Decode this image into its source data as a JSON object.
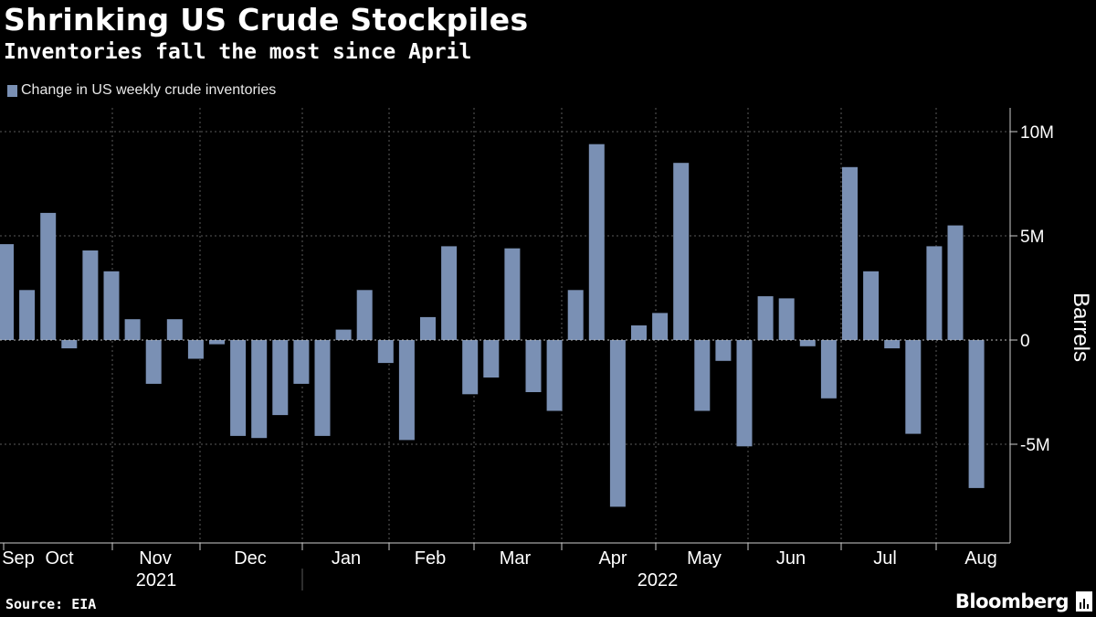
{
  "title": "Shrinking US Crude Stockpiles",
  "subtitle": "Inventories fall the most since April",
  "source": "Source: EIA",
  "brand": "Bloomberg",
  "colors": {
    "background": "#000000",
    "bar": "#7a90b4",
    "grid": "#5a5a5a",
    "text": "#ffffff",
    "axis": "#cccccc"
  },
  "chart_data": {
    "type": "bar",
    "title": "Shrinking US Crude Stockpiles",
    "subtitle": "Inventories fall the most since April",
    "series": [
      {
        "name": "Change in US weekly crude inventories",
        "unit": "barrels (millions)",
        "values": [
          4.6,
          2.4,
          6.1,
          -0.4,
          4.3,
          3.3,
          1.0,
          -2.1,
          1.0,
          -0.9,
          -0.2,
          -4.6,
          -4.7,
          -3.6,
          -2.1,
          -4.6,
          0.5,
          2.4,
          -1.1,
          -4.8,
          1.1,
          4.5,
          -2.6,
          -1.8,
          4.4,
          -2.5,
          -3.4,
          2.4,
          9.4,
          -8.0,
          0.7,
          1.3,
          8.5,
          -3.4,
          -1.0,
          -5.1,
          2.1,
          2.0,
          -0.3,
          -2.8,
          8.3,
          3.3,
          -0.4,
          -4.5,
          4.5,
          5.5,
          -7.1
        ]
      }
    ],
    "x_month_labels": [
      "Sep",
      "Oct",
      "Nov",
      "Dec",
      "Jan",
      "Feb",
      "Mar",
      "Apr",
      "May",
      "Jun",
      "Jul",
      "Aug"
    ],
    "x_year_labels": [
      "2021",
      "2022"
    ],
    "y_ticks": [
      {
        "value": 10,
        "label": "10M"
      },
      {
        "value": 5,
        "label": "5M"
      },
      {
        "value": 0,
        "label": "0"
      },
      {
        "value": -5,
        "label": "-5M"
      }
    ],
    "ylabel": "Barrels",
    "ylim": [
      -9.5,
      11.2
    ],
    "grid": true,
    "legend_position": "top-left"
  }
}
